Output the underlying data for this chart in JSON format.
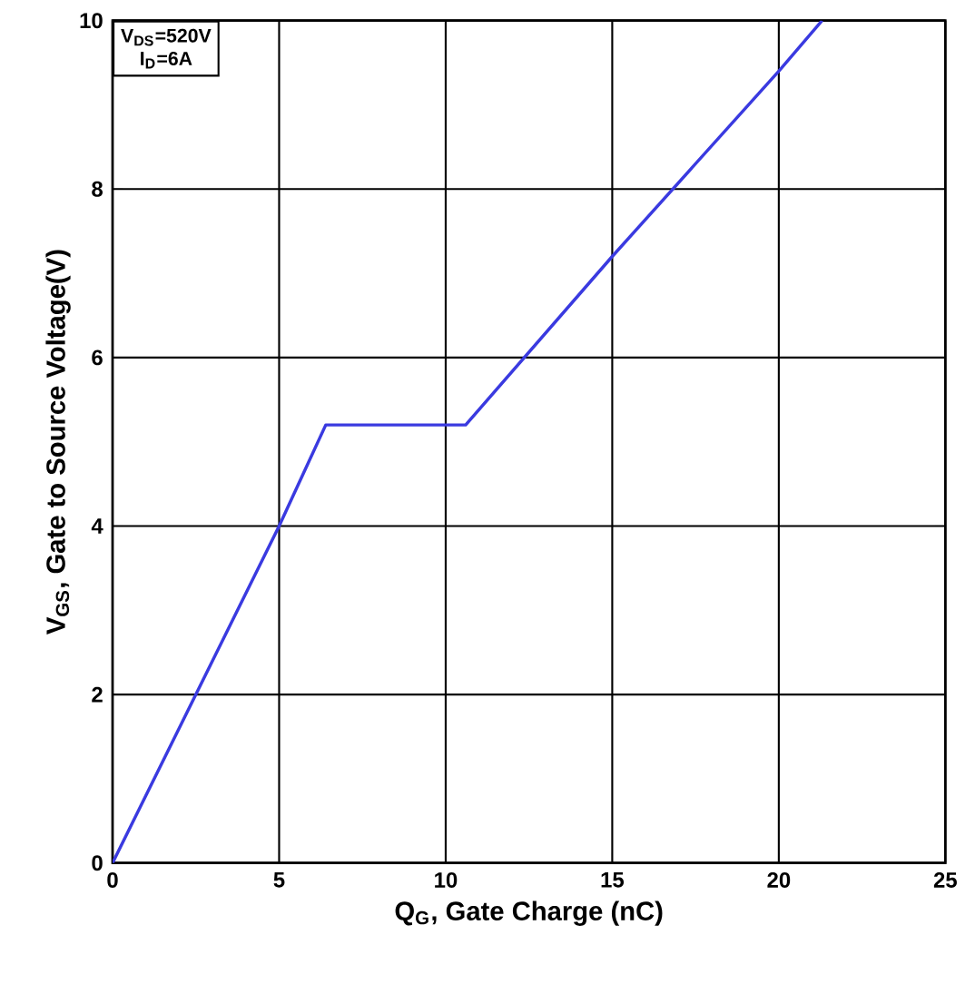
{
  "chart_data": {
    "type": "line",
    "xlabel": "Q$_{G}$, Gate Charge (nC)",
    "ylabel": "V$_{GS}$, Gate to Source Voltage(V)",
    "x": [
      0,
      5,
      6.4,
      10.6,
      15,
      20,
      21.3
    ],
    "series": [
      {
        "color": "#3a3ae0",
        "values": [
          0,
          4,
          5.2,
          5.2,
          7.2,
          9.4,
          10
        ]
      }
    ],
    "xlim": [
      0,
      25
    ],
    "ylim": [
      0,
      10
    ],
    "xticks": [
      0,
      5,
      10,
      15,
      20,
      25
    ],
    "yticks": [
      0,
      2,
      4,
      6,
      8,
      10
    ],
    "grid": true,
    "marker": "none",
    "line_style": "solid",
    "annotations": [
      "V$_{DS}$=520V",
      "I$_{D}$=6A"
    ]
  }
}
